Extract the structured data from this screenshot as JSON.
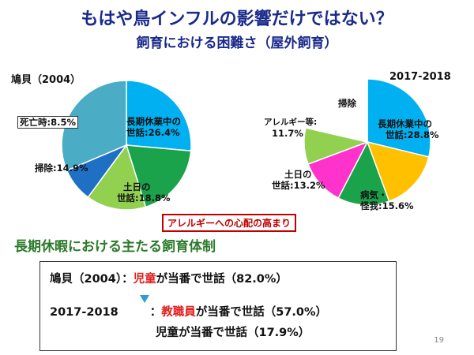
{
  "title": "もはや鳥インフルの影響だけではない？",
  "subtitle": "飼育における困難さ（屋外飼育）",
  "charts": [
    {
      "label": "鳩貝（2004）",
      "slices": [
        {
          "name": "長期休業中の",
          "name2": "世話",
          "value": 26.4,
          "value_label": "26.4%",
          "color": "#00b0f0"
        },
        {
          "name": "土日の",
          "name2": "世話",
          "value": 18.8,
          "value_label": "18.8%",
          "color": "#1aa34a"
        },
        {
          "name": "掃除",
          "value": 14.9,
          "value_label": "14.9%",
          "color": "#92d050"
        },
        {
          "name": "死亡時",
          "value": 8.5,
          "value_label": "8.5%",
          "color": "#1f6fc5"
        },
        {
          "name": "",
          "value": 31.4,
          "color": "#4bacc6"
        }
      ]
    },
    {
      "label": "2017-2018",
      "slices": [
        {
          "name": "長期休業中の",
          "name2": "世話",
          "value": 28.8,
          "value_label": "28.8%",
          "color": "#00b0f0"
        },
        {
          "name": "病気・",
          "name2": "怪我",
          "value": 15.6,
          "value_label": "15.6%",
          "color": "#ffc000"
        },
        {
          "name": "土日の",
          "name2": "世話",
          "value": 13.2,
          "value_label": "13.2%",
          "color": "#1aa34a"
        },
        {
          "name": "アレルギー等",
          "value": 11.7,
          "value_label": "11.7%",
          "color": "#ff33cc"
        },
        {
          "name": "掃除",
          "value": 9.3,
          "color": "#92d050"
        },
        {
          "name": "",
          "value": 21.4,
          "color": "#ffffff"
        }
      ]
    }
  ],
  "concern_note": "アレルギーへの心配の高まり",
  "section_heading": "長期休暇における主たる飼育体制",
  "info": {
    "line1_label": "鳩貝（2004）：",
    "line1_red": "児童",
    "line1_rest": "が当番で世話（82.0%）",
    "line2_label": "2017-2018",
    "line2_colon": "：",
    "line2_red": "教職員",
    "line2_rest": "が当番で世話（57.0%）",
    "line3": "児童が当番で世話（17.9%）"
  },
  "page_number": "19"
}
